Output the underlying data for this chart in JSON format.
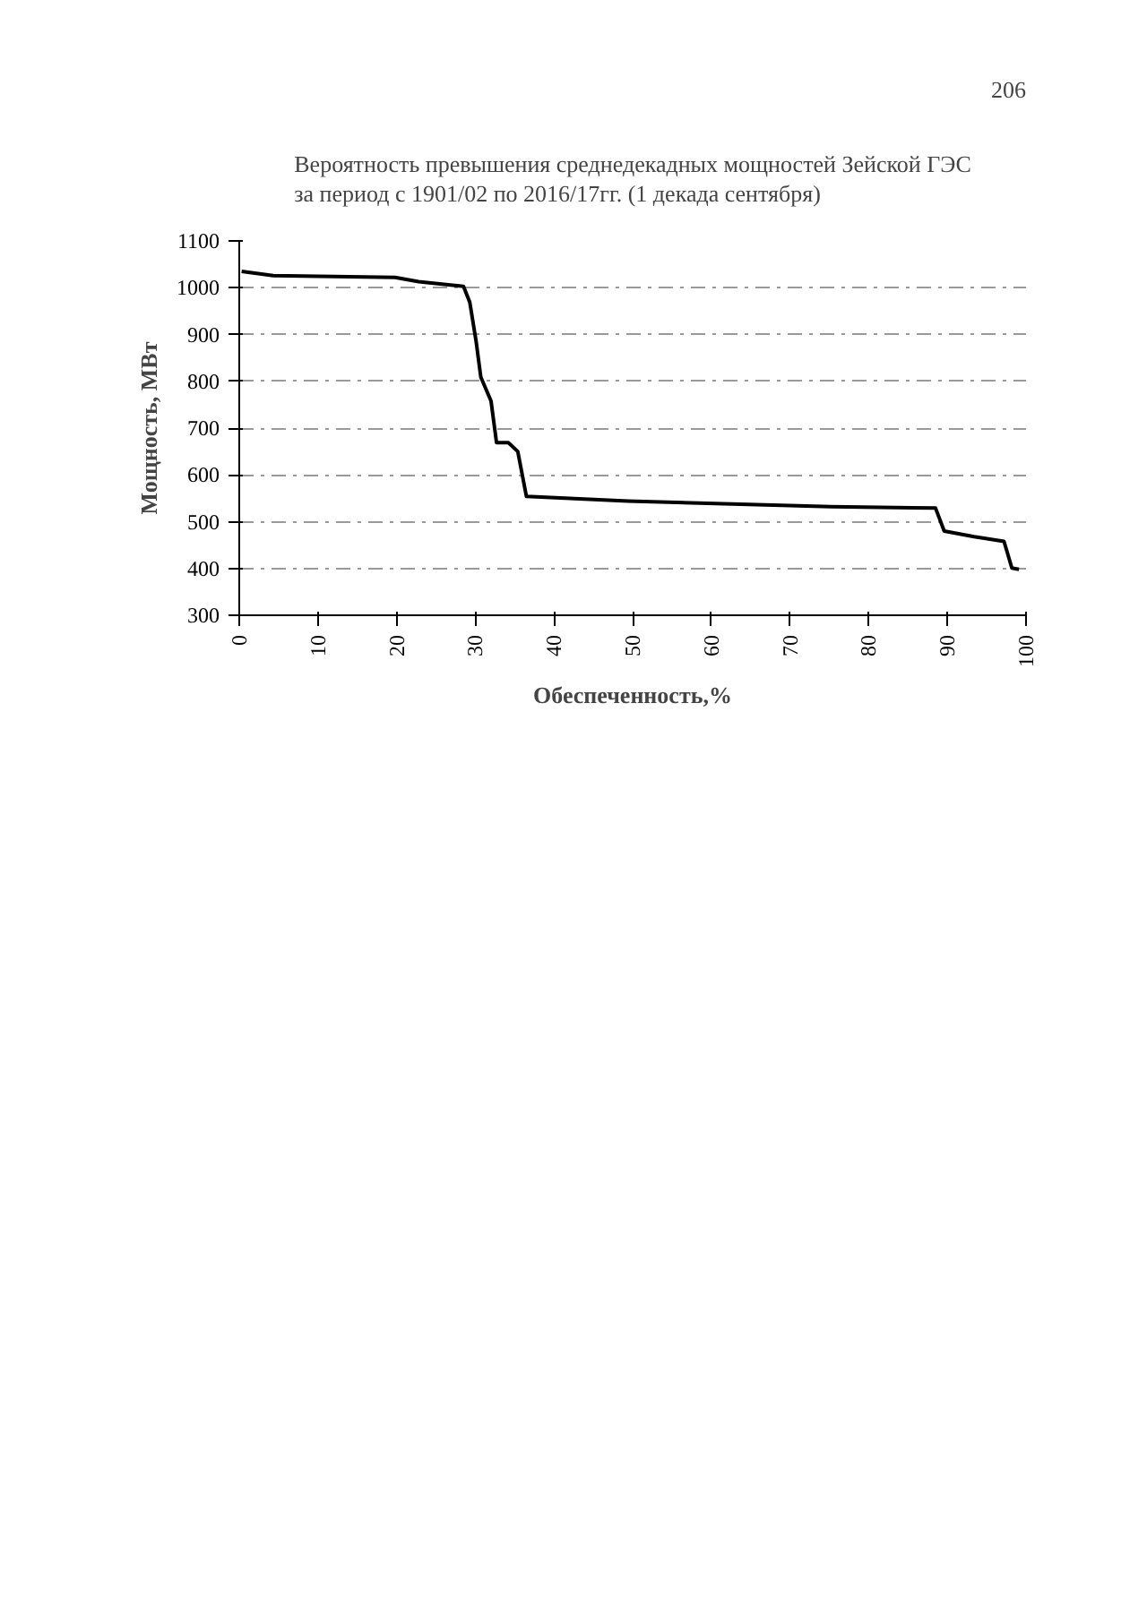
{
  "chart_data": {
    "type": "line",
    "title": "Вероятность превышения среднедекадных мощностей Зейской ГЭС\nза период с 1901/02 по 2016/17гг. (1 декада сентября)",
    "xlabel": "Обеспеченность,%",
    "ylabel": "Мощность, МВт",
    "annotations": [
      "206"
    ],
    "x": [
      0.3,
      4.3,
      19.8,
      22.8,
      28.5,
      29.3,
      30.1,
      30.7,
      32.0,
      32.7,
      34.2,
      35.4,
      36.5,
      49.4,
      75.2,
      88.5,
      89.6,
      93.4,
      97.2,
      98.2,
      99.1
    ],
    "series": [
      {
        "color": "#000000",
        "values": [
          1035,
          1026,
          1022,
          1013,
          1003,
          969,
          886,
          809,
          758,
          669,
          669,
          650,
          554,
          544,
          532,
          529,
          480,
          468,
          458,
          401,
          398
        ]
      }
    ],
    "xlim": [
      0,
      100
    ],
    "xticks": [
      0,
      10,
      20,
      30,
      40,
      50,
      60,
      70,
      80,
      90,
      100
    ],
    "ylim": [
      300,
      1100
    ],
    "yticks": [
      300,
      400,
      500,
      600,
      700,
      800,
      900,
      1000,
      1100
    ],
    "grid": "y",
    "line_style": "solid",
    "marker": "none"
  }
}
